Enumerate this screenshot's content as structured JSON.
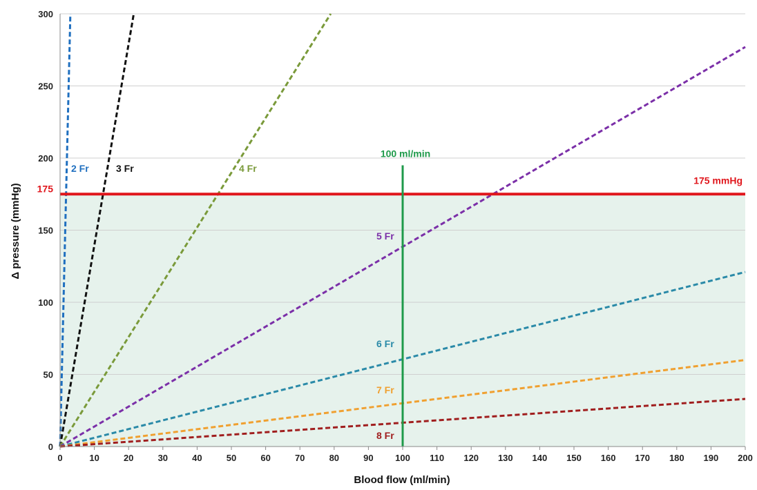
{
  "chart_data": {
    "type": "line",
    "xlabel": "Blood flow (ml/min)",
    "ylabel": "Δ pressure (mmHg)",
    "xlim": [
      0,
      200
    ],
    "ylim": [
      0,
      300
    ],
    "x_ticks": [
      0,
      10,
      20,
      30,
      40,
      50,
      60,
      70,
      80,
      90,
      100,
      110,
      120,
      130,
      140,
      150,
      160,
      170,
      180,
      190,
      200
    ],
    "y_ticks": [
      0,
      50,
      100,
      150,
      200,
      250,
      300
    ],
    "grid": "horizontal",
    "shaded_region": {
      "y_range": [
        0,
        175
      ],
      "color": "#e6f2ec"
    },
    "series": [
      {
        "name": "2 Fr",
        "x": [
          0,
          3.0
        ],
        "y": [
          0,
          300
        ],
        "color": "#1f6fbf",
        "style": "dashed"
      },
      {
        "name": "3 Fr",
        "x": [
          0,
          21.5
        ],
        "y": [
          0,
          300
        ],
        "color": "#111111",
        "style": "dashed"
      },
      {
        "name": "4 Fr",
        "x": [
          0,
          79
        ],
        "y": [
          0,
          300
        ],
        "color": "#7a9a3a",
        "style": "dashed"
      },
      {
        "name": "5 Fr",
        "x": [
          0,
          200
        ],
        "y": [
          0,
          277
        ],
        "color": "#7b2fa8",
        "style": "dashed"
      },
      {
        "name": "6 Fr",
        "x": [
          0,
          200
        ],
        "y": [
          0,
          121
        ],
        "color": "#2a8aa8",
        "style": "dashed"
      },
      {
        "name": "7 Fr",
        "x": [
          0,
          200
        ],
        "y": [
          0,
          60
        ],
        "color": "#f0a030",
        "style": "dashed"
      },
      {
        "name": "8 Fr",
        "x": [
          0,
          200
        ],
        "y": [
          0,
          33
        ],
        "color": "#a01e1e",
        "style": "dashed"
      }
    ],
    "reference_lines": [
      {
        "orientation": "horizontal",
        "value": 175,
        "color": "#e0161c",
        "label": "175 mmHg",
        "axis_label": "175"
      },
      {
        "orientation": "vertical",
        "value": 100,
        "color": "#1e9a4a",
        "label": "100 ml/min"
      }
    ]
  }
}
